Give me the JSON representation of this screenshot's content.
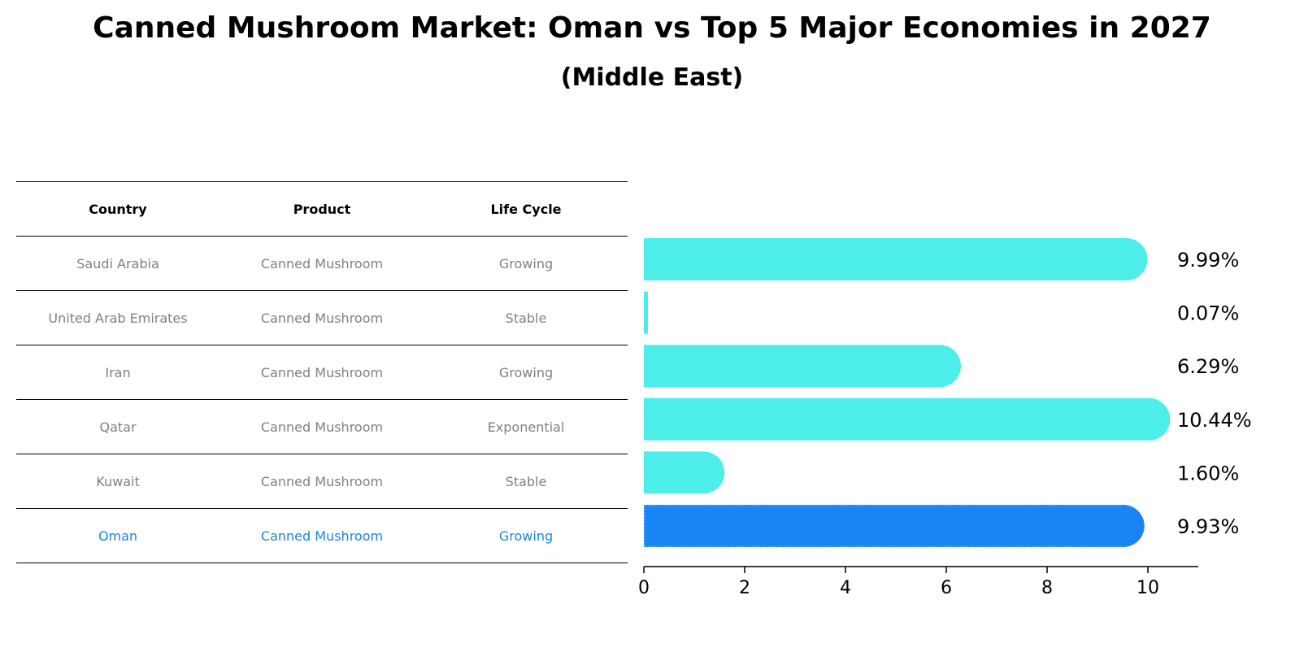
{
  "title": "Canned Mushroom Market: Oman vs Top 5 Major Economies in 2027",
  "subtitle": "(Middle East)",
  "table": {
    "headers": [
      "Country",
      "Product",
      "Life Cycle"
    ],
    "rows": [
      {
        "country": "Saudi Arabia",
        "product": "Canned Mushroom",
        "life_cycle": "Growing"
      },
      {
        "country": "United Arab Emirates",
        "product": "Canned Mushroom",
        "life_cycle": "Stable"
      },
      {
        "country": "Iran",
        "product": "Canned Mushroom",
        "life_cycle": "Growing"
      },
      {
        "country": "Qatar",
        "product": "Canned Mushroom",
        "life_cycle": "Exponential"
      },
      {
        "country": "Kuwait",
        "product": "Canned Mushroom",
        "life_cycle": "Stable"
      },
      {
        "country": "Oman",
        "product": "Canned Mushroom",
        "life_cycle": "Growing"
      }
    ]
  },
  "colors": {
    "bar": "#4deee9",
    "highlight_bar": "#1a84f5",
    "highlight_text": "#1a84d6",
    "muted_text": "#808080"
  },
  "chart_data": {
    "type": "bar",
    "orientation": "horizontal",
    "categories": [
      "Saudi Arabia",
      "United Arab Emirates",
      "Iran",
      "Qatar",
      "Kuwait",
      "Oman"
    ],
    "values": [
      9.99,
      0.07,
      6.29,
      10.44,
      1.6,
      9.93
    ],
    "value_labels": [
      "9.99%",
      "0.07%",
      "6.29%",
      "10.44%",
      "1.60%",
      "9.93%"
    ],
    "highlight": "Oman",
    "xlim": [
      0,
      11
    ],
    "xticks": [
      0,
      2,
      4,
      6,
      8,
      10
    ],
    "grid": false,
    "title": "",
    "xlabel": "",
    "ylabel": ""
  }
}
